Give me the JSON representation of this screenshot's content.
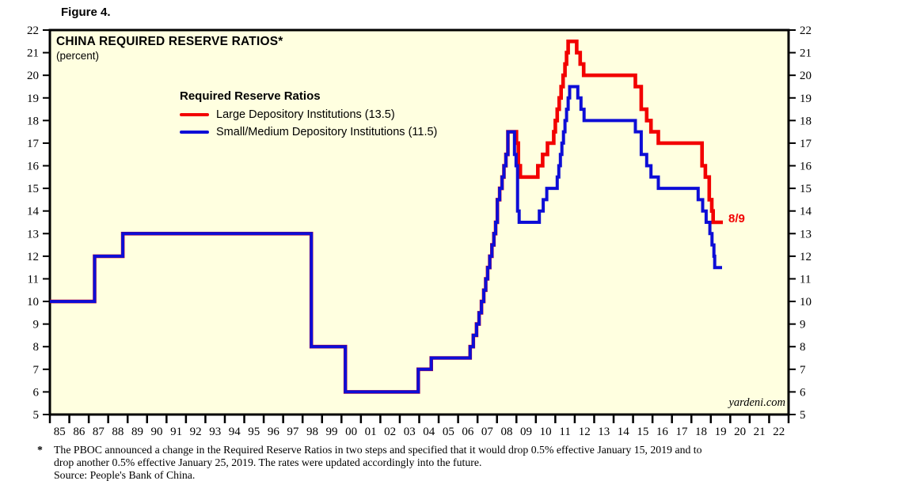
{
  "figure_label": "Figure 4.",
  "chart_data": {
    "type": "line",
    "title": "CHINA REQUIRED RESERVE RATIOS*",
    "subtitle": "(percent)",
    "legend_heading": "Required Reserve Ratios",
    "legend_position": "upper-left-inside",
    "watermark": "yardeni.com",
    "annotation": {
      "text": "8/9",
      "color": "#F20000",
      "x": 2019.75,
      "y": 13.5
    },
    "xlabel": "",
    "ylabel": "",
    "xlim": [
      1985,
      2023
    ],
    "ylim": [
      5,
      22
    ],
    "grid": false,
    "plot_bg": "#FFFFE0",
    "yticks": [
      5,
      6,
      7,
      8,
      9,
      10,
      11,
      12,
      13,
      14,
      15,
      16,
      17,
      18,
      19,
      20,
      21,
      22
    ],
    "xtick_labels": [
      "85",
      "86",
      "87",
      "88",
      "89",
      "90",
      "91",
      "92",
      "93",
      "94",
      "95",
      "96",
      "97",
      "98",
      "99",
      "00",
      "01",
      "02",
      "03",
      "04",
      "05",
      "06",
      "07",
      "08",
      "09",
      "10",
      "11",
      "12",
      "13",
      "14",
      "15",
      "16",
      "17",
      "18",
      "19",
      "20",
      "21",
      "22"
    ],
    "series": [
      {
        "name": "Large Depository Institutions",
        "legend_label": "Large Depository Institutions (13.5)",
        "color": "#F20000",
        "last_value": 13.5,
        "end_year": 2019.62,
        "points": [
          [
            1985.0,
            10
          ],
          [
            1987.3,
            12
          ],
          [
            1988.75,
            13
          ],
          [
            1998.45,
            8
          ],
          [
            2000.2,
            6
          ],
          [
            2003.95,
            7
          ],
          [
            2004.62,
            7.5
          ],
          [
            2006.62,
            8
          ],
          [
            2006.78,
            8.5
          ],
          [
            2006.95,
            9
          ],
          [
            2007.08,
            9.5
          ],
          [
            2007.2,
            10
          ],
          [
            2007.32,
            10.5
          ],
          [
            2007.42,
            11
          ],
          [
            2007.52,
            11.5
          ],
          [
            2007.63,
            12
          ],
          [
            2007.74,
            12.5
          ],
          [
            2007.84,
            13
          ],
          [
            2007.93,
            13.5
          ],
          [
            2008.02,
            14.5
          ],
          [
            2008.14,
            15
          ],
          [
            2008.26,
            15.5
          ],
          [
            2008.36,
            16
          ],
          [
            2008.46,
            16.5
          ],
          [
            2008.56,
            17.5
          ],
          [
            2009.0,
            17
          ],
          [
            2009.1,
            16
          ],
          [
            2009.2,
            15.5
          ],
          [
            2010.1,
            16
          ],
          [
            2010.35,
            16.5
          ],
          [
            2010.6,
            17
          ],
          [
            2010.92,
            17.5
          ],
          [
            2011.0,
            18
          ],
          [
            2011.1,
            18.5
          ],
          [
            2011.2,
            19
          ],
          [
            2011.3,
            19.5
          ],
          [
            2011.4,
            20
          ],
          [
            2011.5,
            20.5
          ],
          [
            2011.58,
            21
          ],
          [
            2011.66,
            21.5
          ],
          [
            2012.1,
            21
          ],
          [
            2012.28,
            20.5
          ],
          [
            2012.46,
            20
          ],
          [
            2015.12,
            19.5
          ],
          [
            2015.42,
            18.5
          ],
          [
            2015.7,
            18
          ],
          [
            2015.92,
            17.5
          ],
          [
            2016.3,
            17
          ],
          [
            2018.55,
            16
          ],
          [
            2018.72,
            15.5
          ],
          [
            2018.92,
            14.5
          ],
          [
            2019.05,
            14
          ],
          [
            2019.12,
            13.5
          ]
        ]
      },
      {
        "name": "Small/Medium Depository Institutions",
        "legend_label": "Small/Medium Depository Institutions (11.5)",
        "color": "#0D0DD6",
        "last_value": 11.5,
        "end_year": 2019.58,
        "points": [
          [
            1985.0,
            10
          ],
          [
            1987.3,
            12
          ],
          [
            1988.75,
            13
          ],
          [
            1998.45,
            8
          ],
          [
            2000.2,
            6
          ],
          [
            2003.95,
            7
          ],
          [
            2004.62,
            7.5
          ],
          [
            2006.62,
            8
          ],
          [
            2006.78,
            8.5
          ],
          [
            2006.95,
            9
          ],
          [
            2007.08,
            9.5
          ],
          [
            2007.2,
            10
          ],
          [
            2007.32,
            10.5
          ],
          [
            2007.42,
            11
          ],
          [
            2007.52,
            11.5
          ],
          [
            2007.63,
            12
          ],
          [
            2007.74,
            12.5
          ],
          [
            2007.84,
            13
          ],
          [
            2007.93,
            13.5
          ],
          [
            2008.02,
            14.5
          ],
          [
            2008.14,
            15
          ],
          [
            2008.26,
            15.5
          ],
          [
            2008.36,
            16
          ],
          [
            2008.46,
            16.5
          ],
          [
            2008.56,
            17.5
          ],
          [
            2008.9,
            16.5
          ],
          [
            2008.98,
            16
          ],
          [
            2009.06,
            14
          ],
          [
            2009.14,
            13.5
          ],
          [
            2010.18,
            14
          ],
          [
            2010.38,
            14.5
          ],
          [
            2010.56,
            15
          ],
          [
            2011.1,
            15.5
          ],
          [
            2011.18,
            16
          ],
          [
            2011.26,
            16.5
          ],
          [
            2011.34,
            17
          ],
          [
            2011.42,
            17.5
          ],
          [
            2011.5,
            18
          ],
          [
            2011.58,
            18.5
          ],
          [
            2011.66,
            19
          ],
          [
            2011.74,
            19.5
          ],
          [
            2012.16,
            19
          ],
          [
            2012.32,
            18.5
          ],
          [
            2012.48,
            18
          ],
          [
            2015.12,
            17.5
          ],
          [
            2015.42,
            16.5
          ],
          [
            2015.7,
            16
          ],
          [
            2015.92,
            15.5
          ],
          [
            2016.3,
            15
          ],
          [
            2018.35,
            14.5
          ],
          [
            2018.58,
            14
          ],
          [
            2018.76,
            13.5
          ],
          [
            2018.95,
            13
          ],
          [
            2019.06,
            12.5
          ],
          [
            2019.16,
            12
          ],
          [
            2019.2,
            11.5
          ]
        ]
      }
    ]
  },
  "footnote": {
    "marker": "*",
    "lines": [
      "The PBOC announced a change in the Required Reserve Ratios in two steps and specified that it would drop 0.5% effective January 15, 2019 and to",
      "drop another 0.5% effective January 25, 2019. The rates were updated accordingly into the future.",
      "Source: People's Bank of China."
    ]
  }
}
